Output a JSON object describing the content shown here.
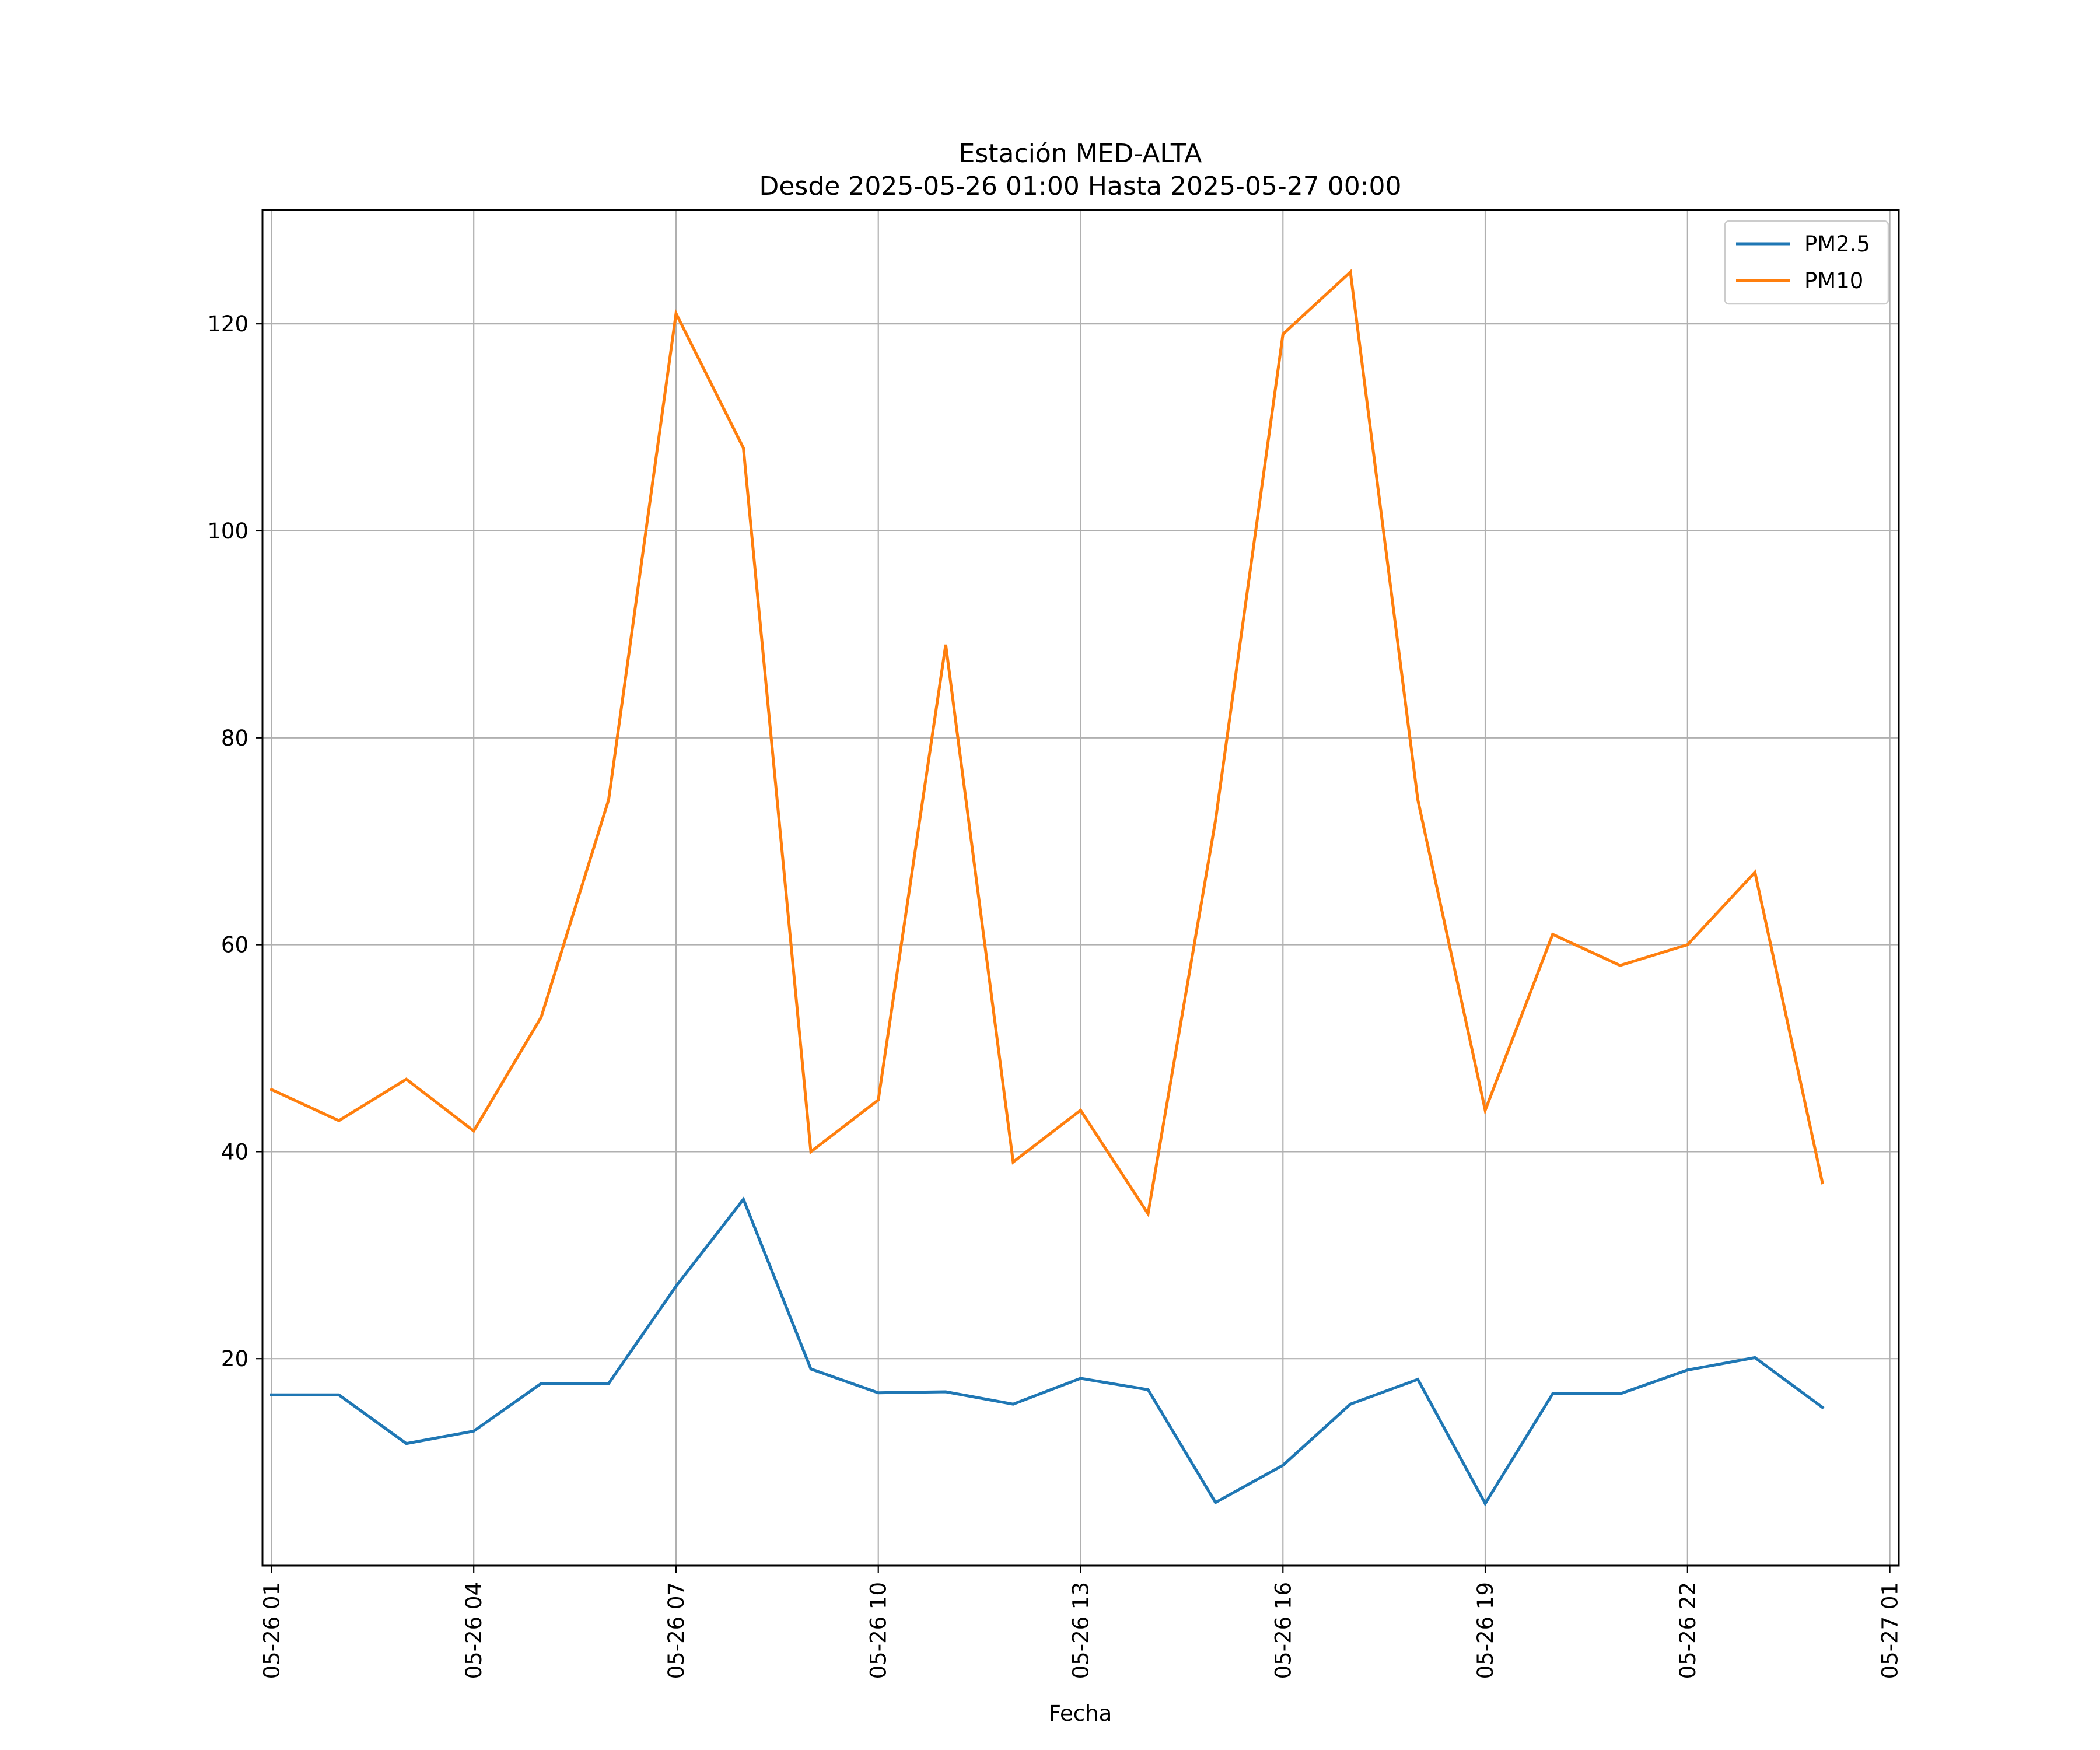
{
  "chart_data": {
    "type": "line",
    "title": "Estación MED-ALTA",
    "subtitle": "Desde 2025-05-26 01:00 Hasta 2025-05-27 00:00",
    "xlabel": "Fecha",
    "ylabel": "",
    "x": [
      "2025-05-26 01:00",
      "2025-05-26 02:00",
      "2025-05-26 03:00",
      "2025-05-26 04:00",
      "2025-05-26 05:00",
      "2025-05-26 06:00",
      "2025-05-26 07:00",
      "2025-05-26 08:00",
      "2025-05-26 09:00",
      "2025-05-26 10:00",
      "2025-05-26 11:00",
      "2025-05-26 12:00",
      "2025-05-26 13:00",
      "2025-05-26 14:00",
      "2025-05-26 15:00",
      "2025-05-26 16:00",
      "2025-05-26 17:00",
      "2025-05-26 18:00",
      "2025-05-26 19:00",
      "2025-05-26 20:00",
      "2025-05-26 21:00",
      "2025-05-26 22:00",
      "2025-05-26 23:00",
      "2025-05-27 00:00"
    ],
    "xlim": [
      "2025-05-26 00:52",
      "2025-05-27 01:08"
    ],
    "x_ticks": [
      "2025-05-26 01:00",
      "2025-05-26 04:00",
      "2025-05-26 07:00",
      "2025-05-26 10:00",
      "2025-05-26 13:00",
      "2025-05-26 16:00",
      "2025-05-26 19:00",
      "2025-05-26 22:00",
      "2025-05-27 01:00"
    ],
    "x_tick_labels": [
      "05-26 01",
      "05-26 04",
      "05-26 07",
      "05-26 10",
      "05-26 13",
      "05-26 16",
      "05-26 19",
      "05-26 22",
      "05-27 01"
    ],
    "ylim": [
      0,
      131
    ],
    "y_ticks": [
      20,
      40,
      60,
      80,
      100,
      120
    ],
    "y_tick_labels": [
      "20",
      "40",
      "60",
      "80",
      "100",
      "120"
    ],
    "grid": true,
    "legend_position": "top-right",
    "series": [
      {
        "name": "PM2.5",
        "color": "#1f77b4",
        "values": [
          16.5,
          16.5,
          11.8,
          13.0,
          17.6,
          17.6,
          27.0,
          35.4,
          19.0,
          16.7,
          16.8,
          15.6,
          18.1,
          17.0,
          6.1,
          9.7,
          15.6,
          18.0,
          6.0,
          16.6,
          16.6,
          18.9,
          20.1,
          15.3
        ]
      },
      {
        "name": "PM10",
        "color": "#ff7f0e",
        "values": [
          46,
          43,
          47,
          42,
          53,
          74,
          121,
          108,
          40,
          45,
          89,
          39,
          44,
          34,
          72,
          119,
          125,
          74,
          44,
          61,
          58,
          60,
          67,
          37
        ]
      }
    ]
  }
}
